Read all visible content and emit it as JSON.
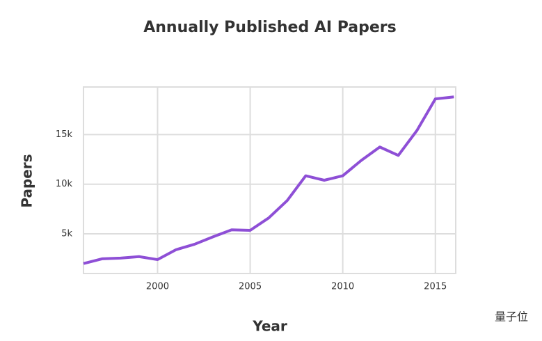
{
  "chart_data": {
    "type": "line",
    "title": "Annually Published AI Papers",
    "x_label": "Year",
    "y_label": "Papers",
    "x": [
      1996,
      1997,
      1998,
      1999,
      2000,
      2001,
      2002,
      2003,
      2004,
      2005,
      2006,
      2007,
      2008,
      2009,
      2010,
      2011,
      2012,
      2013,
      2014,
      2015,
      2016
    ],
    "series": [
      {
        "name": "Papers",
        "color": "#8e4fd6",
        "values": [
          2000,
          2480,
          2550,
          2700,
          2400,
          3400,
          3950,
          4700,
          5400,
          5350,
          6600,
          8350,
          10850,
          10400,
          10850,
          12400,
          13750,
          12900,
          15400,
          18600,
          18800
        ]
      }
    ],
    "xlim": [
      1996,
      2016.1
    ],
    "ylim": [
      1000,
      19800
    ],
    "xticks": [
      2000,
      2005,
      2010,
      2015
    ],
    "yticks": [
      {
        "value": 5000,
        "label": "5k"
      },
      {
        "value": 10000,
        "label": "10k"
      },
      {
        "value": 15000,
        "label": "15k"
      }
    ],
    "grid": true
  },
  "watermark": "量子位"
}
